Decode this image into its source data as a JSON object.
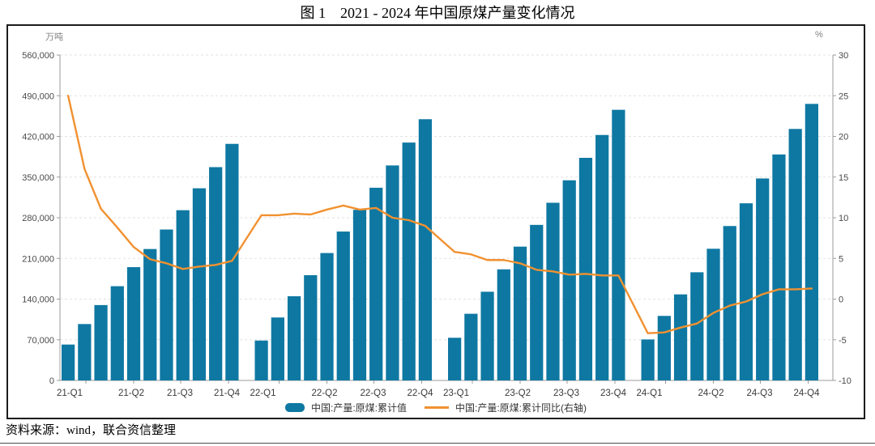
{
  "figure": {
    "title": "图 1　2021 - 2024 年中国原煤产量变化情况",
    "source_note": "资料来源：wind，联合资信整理"
  },
  "chart_data": {
    "type": "bar+line",
    "title": "图 1 2021 - 2024 年中国原煤产量变化情况",
    "years": [
      "2021",
      "2022",
      "2023",
      "2024"
    ],
    "bars_per_year": 11,
    "period_note": "monthly cumulative values, Feb–Dec of each year",
    "x_tick_labels": [
      "21-Q1",
      "21-Q2",
      "21-Q3",
      "21-Q4",
      "22-Q1",
      "22-Q2",
      "22-Q3",
      "22-Q4",
      "23-Q1",
      "23-Q2",
      "23-Q3",
      "23-Q4",
      "24-Q1",
      "24-Q2",
      "24-Q3",
      "24-Q4"
    ],
    "left_axis": {
      "unit": "万吨",
      "min": 0,
      "max": 560000,
      "tick_step": 70000,
      "tick_labels": [
        "560,000",
        "490,000",
        "420,000",
        "350,000",
        "280,000",
        "210,000",
        "140,000",
        "70,000",
        "0"
      ]
    },
    "right_axis": {
      "unit": "%",
      "min": -10,
      "max": 30,
      "tick_step": 5,
      "tick_labels": [
        "30",
        "25",
        "20",
        "15",
        "10",
        "5",
        "0",
        "-5",
        "-10"
      ]
    },
    "grid": {
      "horizontal_dashed": true
    },
    "legend_position": "bottom-center",
    "series": [
      {
        "name": "中国:产量:原煤:累计值",
        "type": "bar",
        "axis": "left",
        "unit": "万吨",
        "color": "#0e78a2",
        "values_by_year": [
          [
            61752,
            97056,
            129685,
            162183,
            194976,
            226169,
            259728,
            292964,
            330710,
            367094,
            407136
          ],
          [
            68660,
            108343,
            144880,
            181145,
            219243,
            256241,
            293576,
            331646,
            369994,
            409402,
            449558
          ],
          [
            73423,
            114733,
            152654,
            191193,
            230299,
            267687,
            305772,
            344425,
            383089,
            422433,
            465758
          ],
          [
            70527,
            111064,
            148095,
            186148,
            226619,
            265717,
            304838,
            347595,
            388914,
            432822,
            475935
          ]
        ]
      },
      {
        "name": "中国:产量:原煤:累计同比(右轴)",
        "type": "line",
        "axis": "right",
        "unit": "%",
        "color": "#f19130",
        "values_by_year": [
          [
            25.0,
            16.0,
            11.1,
            8.8,
            6.4,
            4.9,
            4.4,
            3.7,
            4.0,
            4.2,
            4.7
          ],
          [
            10.3,
            10.3,
            10.5,
            10.4,
            11.0,
            11.5,
            11.0,
            11.2,
            10.0,
            9.7,
            9.0
          ],
          [
            5.8,
            5.5,
            4.8,
            4.8,
            4.4,
            3.6,
            3.4,
            3.0,
            3.1,
            2.9,
            2.9
          ],
          [
            -4.2,
            -4.1,
            -3.5,
            -3.0,
            -1.7,
            -0.8,
            -0.3,
            0.6,
            1.2,
            1.2,
            1.3
          ]
        ]
      }
    ]
  }
}
